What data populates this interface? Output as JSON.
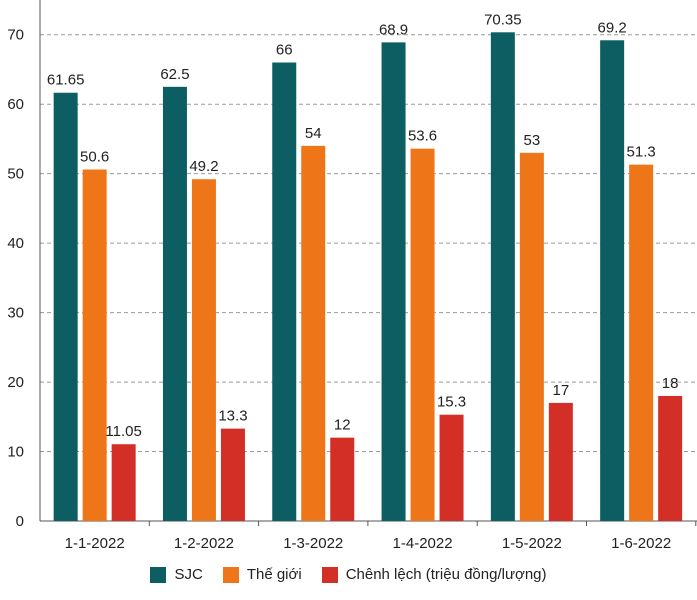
{
  "chart_data": {
    "type": "bar",
    "title": "",
    "xlabel": "",
    "ylabel": "",
    "ylim": [
      0,
      75
    ],
    "yticks": [
      0,
      10,
      20,
      30,
      40,
      50,
      60,
      70
    ],
    "grid": "horizontal dashed",
    "categories": [
      "1-1-2022",
      "1-2-2022",
      "1-3-2022",
      "1-4-2022",
      "1-5-2022",
      "1-6-2022"
    ],
    "series": [
      {
        "name": "SJC",
        "color": "#0d5e63",
        "values": [
          61.65,
          62.5,
          66,
          68.9,
          70.35,
          69.2
        ],
        "labels": [
          "61.65",
          "62.5",
          "66",
          "68.9",
          "70.35",
          "69.2"
        ]
      },
      {
        "name": "Thế giới",
        "color": "#ee7518",
        "values": [
          50.6,
          49.2,
          54,
          53.6,
          53,
          51.3
        ],
        "labels": [
          "50.6",
          "49.2",
          "54",
          "53.6",
          "53",
          "51.3"
        ]
      },
      {
        "name": "Chênh lệch (triệu đồng/lượng)",
        "color": "#d42f26",
        "values": [
          11.05,
          13.3,
          12,
          15.3,
          17,
          18
        ],
        "labels": [
          "11.05",
          "13.3",
          "12",
          "15.3",
          "17",
          "18"
        ]
      }
    ],
    "legend_position": "bottom-center"
  }
}
